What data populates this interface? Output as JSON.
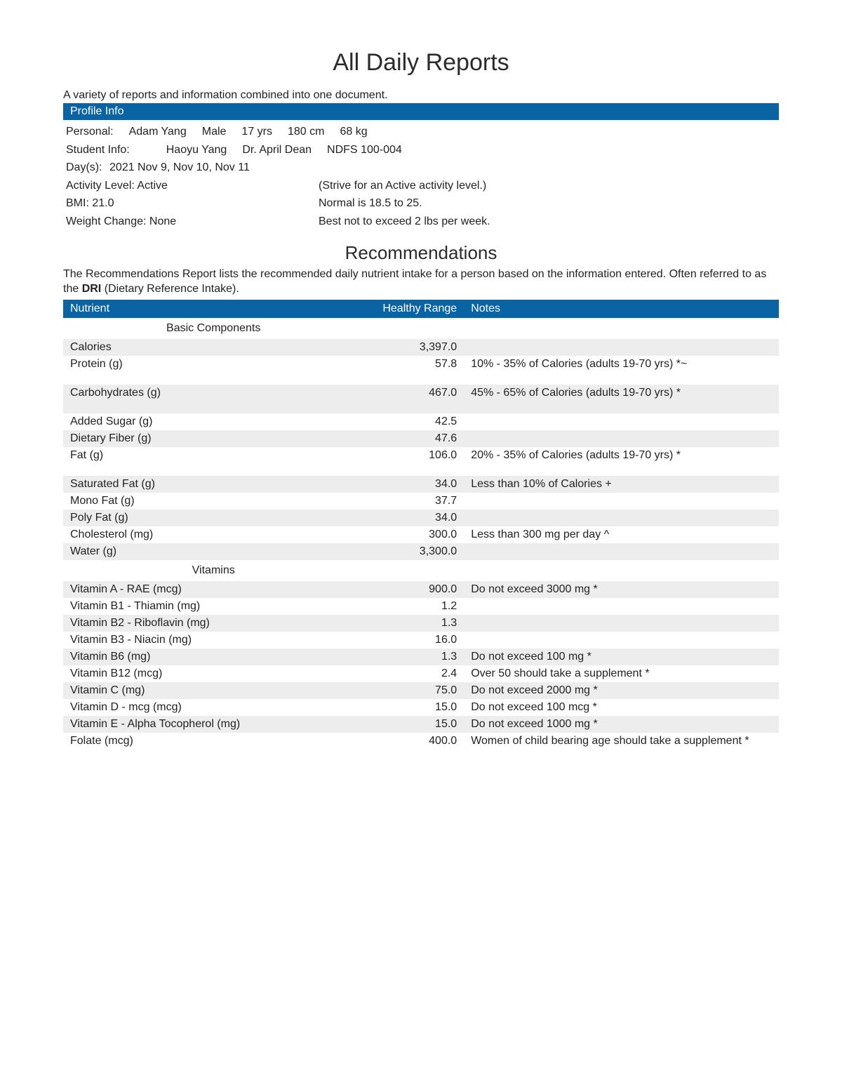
{
  "title": "All Daily Reports",
  "subtitle": "A variety of reports and information combined into one document.",
  "profile_header": "Profile Info",
  "profile": {
    "personal_label": "Personal:",
    "name": "Adam Yang",
    "sex": "Male",
    "age": "17 yrs",
    "height": "180 cm",
    "weight": "68 kg",
    "student_label": "Student Info:",
    "student_name": "Haoyu Yang",
    "instructor": "Dr. April Dean",
    "course": "NDFS 100-004",
    "days_label": "Day(s):",
    "days": "2021 Nov 9, Nov 10, Nov 11",
    "activity_label": "Activity Level: Active",
    "activity_note": "(Strive for an Active activity level.)",
    "bmi_label": "BMI: 21.0",
    "bmi_note": "Normal is 18.5 to 25.",
    "weight_change_label": "Weight Change: None",
    "weight_change_note": "Best not to exceed 2 lbs per week."
  },
  "rec_header": "Recommendations",
  "rec_desc_a": "The Recommendations Report lists the recommended daily nutrient intake for a person based on the information entered.  Often referred to as the ",
  "rec_desc_bold": "DRI",
  "rec_desc_b": " (Dietary Reference Intake).",
  "columns": {
    "nutrient": "Nutrient",
    "range": "Healthy Range",
    "notes": "Notes"
  },
  "rows": [
    {
      "section": "Basic Components"
    },
    {
      "name": "Calories",
      "range": "3,397.0",
      "notes": "",
      "striped": true
    },
    {
      "name": "Protein (g)",
      "range": "57.8",
      "notes": "10% - 35% of Calories (adults 19-70 yrs) *~",
      "striped": false,
      "tall": true
    },
    {
      "name": "Carbohydrates (g)",
      "range": "467.0",
      "notes": "45% - 65% of Calories (adults 19-70 yrs) *",
      "striped": true,
      "tall": true
    },
    {
      "name": "Added Sugar (g)",
      "range": "42.5",
      "notes": "",
      "striped": false
    },
    {
      "name": "Dietary Fiber (g)",
      "range": "47.6",
      "notes": "",
      "striped": true
    },
    {
      "name": "Fat (g)",
      "range": "106.0",
      "notes": "20% - 35% of Calories (adults 19-70 yrs) *",
      "striped": false,
      "tall": true
    },
    {
      "name": "Saturated Fat (g)",
      "range": "34.0",
      "notes": "Less than 10% of Calories +",
      "striped": true
    },
    {
      "name": "Mono Fat (g)",
      "range": "37.7",
      "notes": "",
      "striped": false
    },
    {
      "name": "Poly Fat (g)",
      "range": "34.0",
      "notes": "",
      "striped": true
    },
    {
      "name": "Cholesterol (mg)",
      "range": "300.0",
      "notes": "Less than 300 mg per day ^",
      "striped": false
    },
    {
      "name": "Water (g)",
      "range": "3,300.0",
      "notes": "",
      "striped": true
    },
    {
      "section": "Vitamins"
    },
    {
      "name": "Vitamin A - RAE (mcg)",
      "range": "900.0",
      "notes": "Do not exceed 3000 mg *",
      "striped": true
    },
    {
      "name": "Vitamin B1 - Thiamin (mg)",
      "range": "1.2",
      "notes": "",
      "striped": false
    },
    {
      "name": "Vitamin B2 - Riboflavin (mg)",
      "range": "1.3",
      "notes": "",
      "striped": true
    },
    {
      "name": "Vitamin B3 - Niacin (mg)",
      "range": "16.0",
      "notes": "",
      "striped": false
    },
    {
      "name": "Vitamin B6 (mg)",
      "range": "1.3",
      "notes": "Do not exceed 100 mg *",
      "striped": true
    },
    {
      "name": "Vitamin B12 (mcg)",
      "range": "2.4",
      "notes": "Over 50 should take a supplement *",
      "striped": false
    },
    {
      "name": "Vitamin C (mg)",
      "range": "75.0",
      "notes": "Do not exceed 2000 mg *",
      "striped": true
    },
    {
      "name": "Vitamin D - mcg (mcg)",
      "range": "15.0",
      "notes": "Do not exceed 100 mcg *",
      "striped": false
    },
    {
      "name": "Vitamin E - Alpha Tocopherol (mg)",
      "range": "15.0",
      "notes": "Do not exceed 1000 mg *",
      "striped": true
    },
    {
      "name": "Folate (mcg)",
      "range": "400.0",
      "notes": "Women of child bearing age should take a supplement *",
      "striped": false
    }
  ]
}
